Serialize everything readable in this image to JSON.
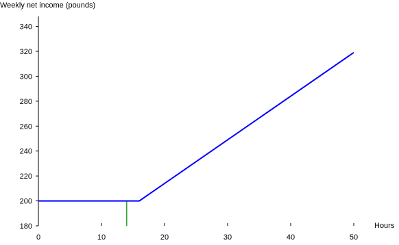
{
  "chart_data": {
    "type": "line",
    "title": "",
    "ylabel": "Weekly net income (pounds)",
    "xlabel": "Hours",
    "xlim": [
      0,
      50
    ],
    "ylim": [
      180,
      348
    ],
    "x_ticks": [
      0,
      10,
      20,
      30,
      40,
      50
    ],
    "y_ticks": [
      180,
      200,
      220,
      240,
      260,
      280,
      300,
      320,
      340
    ],
    "grid": false,
    "legend": "none",
    "series": [
      {
        "color": "#0000ff",
        "points": [
          [
            0,
            200
          ],
          [
            16,
            200
          ],
          [
            50,
            319
          ]
        ]
      }
    ],
    "annotations": [
      {
        "type": "vertical-line",
        "x": 14,
        "y_from": 180,
        "y_to": 200,
        "color": "#2ca02c"
      }
    ]
  }
}
